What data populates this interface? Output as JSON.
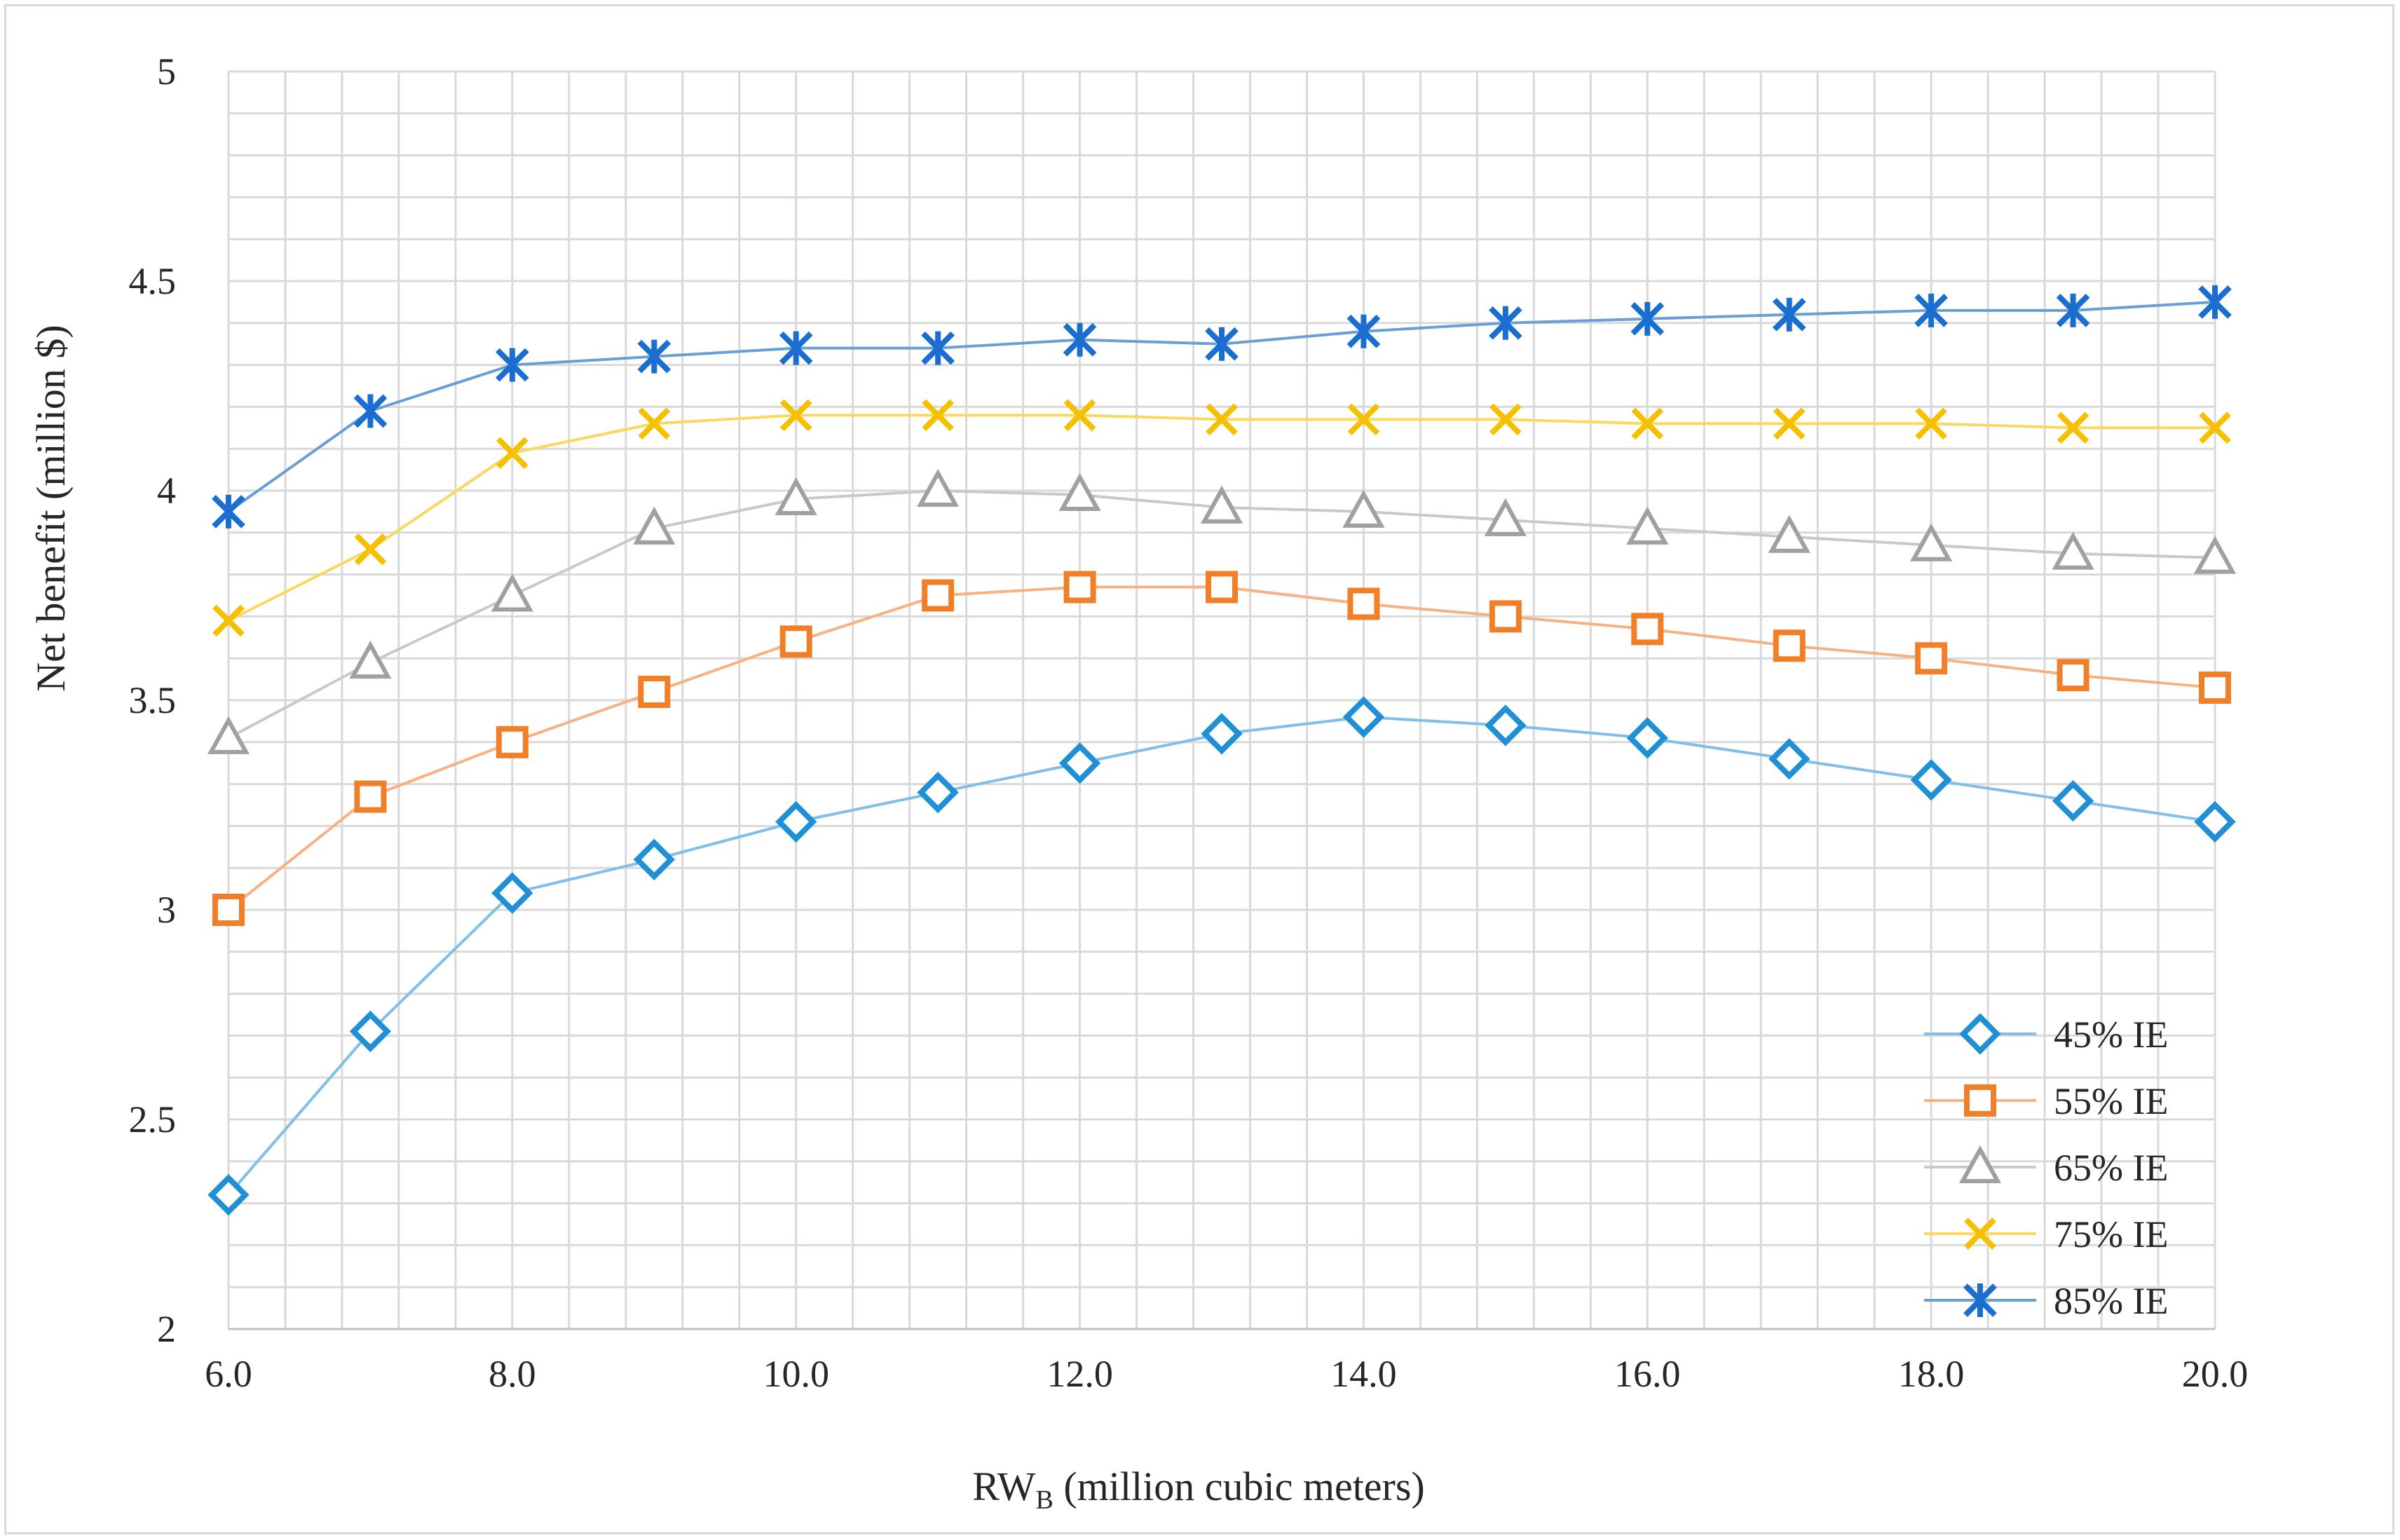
{
  "chart_data": {
    "type": "line",
    "title": "",
    "xlabel_main": "RW",
    "xlabel_sub": "B",
    "xlabel_rest": " (million cubic meters)",
    "ylabel": "Net benefit (million $)",
    "x": [
      6,
      7,
      8,
      9,
      10,
      11,
      12,
      13,
      14,
      15,
      16,
      17,
      18,
      19,
      20
    ],
    "xlim": [
      6,
      20
    ],
    "ylim": [
      2,
      5
    ],
    "x_tick_labels": [
      "6.0",
      "8.0",
      "10.0",
      "12.0",
      "14.0",
      "16.0",
      "18.0",
      "20.0"
    ],
    "x_tick_values": [
      6,
      8,
      10,
      12,
      14,
      16,
      18,
      20
    ],
    "y_tick_labels": [
      "2",
      "2.5",
      "3",
      "3.5",
      "4",
      "4.5",
      "5"
    ],
    "y_tick_values": [
      2,
      2.5,
      3,
      3.5,
      4,
      4.5,
      5
    ],
    "grid": true,
    "legend_position": "bottom-right",
    "series": [
      {
        "name": "45% IE",
        "marker": "diamond",
        "color": "#1f8fd6",
        "line_color": "#7fbfe8",
        "values": [
          2.32,
          2.71,
          3.04,
          3.12,
          3.21,
          3.28,
          3.35,
          3.42,
          3.46,
          3.44,
          3.41,
          3.36,
          3.31,
          3.26,
          3.21
        ]
      },
      {
        "name": "55% IE",
        "marker": "square",
        "color": "#f07f28",
        "line_color": "#f7b183",
        "values": [
          3.0,
          3.27,
          3.4,
          3.52,
          3.64,
          3.75,
          3.77,
          3.77,
          3.73,
          3.7,
          3.67,
          3.63,
          3.6,
          3.56,
          3.53
        ]
      },
      {
        "name": "65% IE",
        "marker": "triangle",
        "color": "#a0a0a0",
        "line_color": "#c9c9c9",
        "values": [
          3.41,
          3.59,
          3.75,
          3.91,
          3.98,
          4.0,
          3.99,
          3.96,
          3.95,
          3.93,
          3.91,
          3.89,
          3.87,
          3.85,
          3.84
        ]
      },
      {
        "name": "75% IE",
        "marker": "x",
        "color": "#f5c000",
        "line_color": "#fad860",
        "values": [
          3.69,
          3.86,
          4.09,
          4.16,
          4.18,
          4.18,
          4.18,
          4.17,
          4.17,
          4.17,
          4.16,
          4.16,
          4.16,
          4.15,
          4.15
        ]
      },
      {
        "name": "85% IE",
        "marker": "star",
        "color": "#1a6ed0",
        "line_color": "#6a9fd6",
        "values": [
          3.95,
          4.19,
          4.3,
          4.32,
          4.34,
          4.34,
          4.36,
          4.35,
          4.38,
          4.4,
          4.41,
          4.42,
          4.43,
          4.43,
          4.45
        ]
      }
    ]
  }
}
